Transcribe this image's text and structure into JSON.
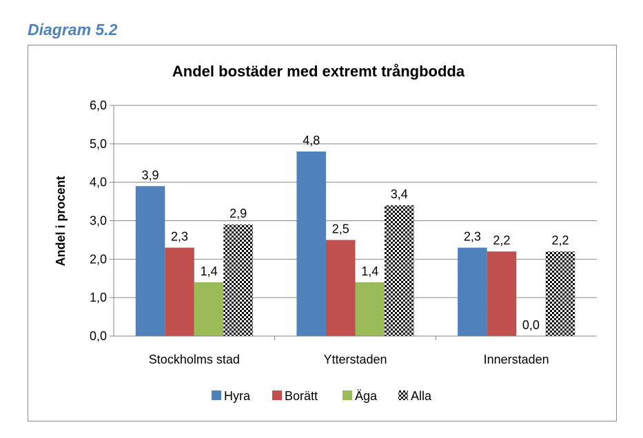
{
  "caption": "Diagram 5.2",
  "chart_data": {
    "type": "bar",
    "title": "Andel bostäder med extremt trångbodda",
    "ylabel": "Andel i procent",
    "xlabel": "",
    "ylim": [
      0,
      6
    ],
    "yticks": [
      "0,0",
      "1,0",
      "2,0",
      "3,0",
      "4,0",
      "5,0",
      "6,0"
    ],
    "grid": true,
    "legend_position": "bottom",
    "categories": [
      "Stockholms stad",
      "Ytterstaden",
      "Innerstaden"
    ],
    "series": [
      {
        "name": "Hyra",
        "color": "#4f81bd",
        "pattern": "solid",
        "values": [
          3.9,
          4.8,
          2.3
        ],
        "labels": [
          "3,9",
          "4,8",
          "2,3"
        ]
      },
      {
        "name": "Borätt",
        "color": "#c0504d",
        "pattern": "solid",
        "values": [
          2.3,
          2.5,
          2.2
        ],
        "labels": [
          "2,3",
          "2,5",
          "2,2"
        ]
      },
      {
        "name": "Äga",
        "color": "#9bbb59",
        "pattern": "solid",
        "values": [
          1.4,
          1.4,
          0.0
        ],
        "labels": [
          "1,4",
          "1,4",
          "0,0"
        ]
      },
      {
        "name": "Alla",
        "color": "#000000",
        "pattern": "checker",
        "values": [
          2.9,
          3.4,
          2.2
        ],
        "labels": [
          "2,9",
          "3,4",
          "2,2"
        ]
      }
    ]
  }
}
